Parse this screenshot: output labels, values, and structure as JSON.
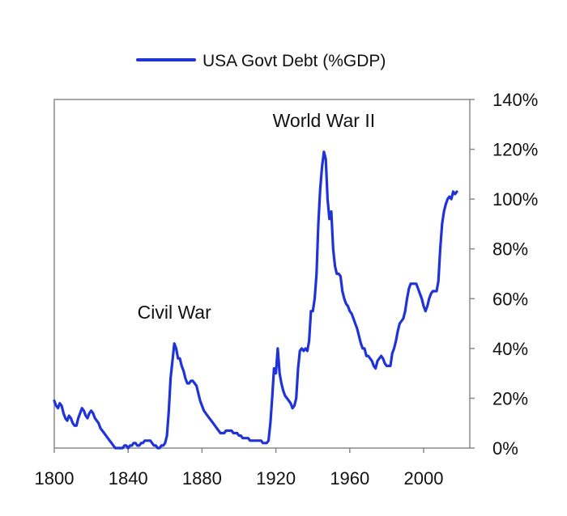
{
  "chart_data": {
    "type": "line",
    "title": "",
    "xlabel": "",
    "ylabel": "",
    "xlim": [
      1800,
      2025
    ],
    "ylim": [
      0,
      140
    ],
    "x_ticks": [
      1800,
      1840,
      1880,
      1920,
      1960,
      2000
    ],
    "y_ticks": [
      0,
      20,
      40,
      60,
      80,
      100,
      120,
      140
    ],
    "y_tick_format": "%",
    "y_axis_side": "right",
    "grid": false,
    "legend_position": "top-center",
    "series": [
      {
        "name": "USA Govt Debt (%GDP)",
        "color": "#1f33d6",
        "points": [
          [
            1800,
            19
          ],
          [
            1801,
            17
          ],
          [
            1802,
            16
          ],
          [
            1803,
            18
          ],
          [
            1804,
            17
          ],
          [
            1805,
            14
          ],
          [
            1806,
            12
          ],
          [
            1807,
            11
          ],
          [
            1808,
            13
          ],
          [
            1809,
            12
          ],
          [
            1810,
            10
          ],
          [
            1811,
            9
          ],
          [
            1812,
            9
          ],
          [
            1813,
            12
          ],
          [
            1814,
            14
          ],
          [
            1815,
            16
          ],
          [
            1816,
            15
          ],
          [
            1817,
            13
          ],
          [
            1818,
            12
          ],
          [
            1819,
            14
          ],
          [
            1820,
            15
          ],
          [
            1821,
            14
          ],
          [
            1822,
            12
          ],
          [
            1823,
            11
          ],
          [
            1824,
            10
          ],
          [
            1825,
            8
          ],
          [
            1826,
            7
          ],
          [
            1827,
            6
          ],
          [
            1828,
            5
          ],
          [
            1829,
            4
          ],
          [
            1830,
            3
          ],
          [
            1831,
            2
          ],
          [
            1832,
            1
          ],
          [
            1833,
            0
          ],
          [
            1834,
            0
          ],
          [
            1835,
            0
          ],
          [
            1836,
            0
          ],
          [
            1837,
            0
          ],
          [
            1838,
            1
          ],
          [
            1839,
            1
          ],
          [
            1840,
            0
          ],
          [
            1841,
            1
          ],
          [
            1842,
            1
          ],
          [
            1843,
            2
          ],
          [
            1844,
            2
          ],
          [
            1845,
            1
          ],
          [
            1846,
            1
          ],
          [
            1847,
            2
          ],
          [
            1848,
            2
          ],
          [
            1849,
            3
          ],
          [
            1850,
            3
          ],
          [
            1851,
            3
          ],
          [
            1852,
            3
          ],
          [
            1853,
            2
          ],
          [
            1854,
            1
          ],
          [
            1855,
            1
          ],
          [
            1856,
            0
          ],
          [
            1857,
            0
          ],
          [
            1858,
            1
          ],
          [
            1859,
            1
          ],
          [
            1860,
            2
          ],
          [
            1861,
            5
          ],
          [
            1862,
            15
          ],
          [
            1863,
            28
          ],
          [
            1864,
            35
          ],
          [
            1865,
            42
          ],
          [
            1866,
            40
          ],
          [
            1867,
            36
          ],
          [
            1868,
            36
          ],
          [
            1869,
            33
          ],
          [
            1870,
            31
          ],
          [
            1871,
            28
          ],
          [
            1872,
            26
          ],
          [
            1873,
            26
          ],
          [
            1874,
            27
          ],
          [
            1875,
            27
          ],
          [
            1876,
            26
          ],
          [
            1877,
            25
          ],
          [
            1878,
            22
          ],
          [
            1879,
            19
          ],
          [
            1880,
            17
          ],
          [
            1881,
            15
          ],
          [
            1882,
            14
          ],
          [
            1883,
            13
          ],
          [
            1884,
            12
          ],
          [
            1885,
            11
          ],
          [
            1886,
            10
          ],
          [
            1887,
            9
          ],
          [
            1888,
            8
          ],
          [
            1889,
            7
          ],
          [
            1890,
            6
          ],
          [
            1891,
            6
          ],
          [
            1892,
            6
          ],
          [
            1893,
            7
          ],
          [
            1894,
            7
          ],
          [
            1895,
            7
          ],
          [
            1896,
            7
          ],
          [
            1897,
            6
          ],
          [
            1898,
            6
          ],
          [
            1899,
            6
          ],
          [
            1900,
            5
          ],
          [
            1901,
            5
          ],
          [
            1902,
            4
          ],
          [
            1903,
            4
          ],
          [
            1904,
            4
          ],
          [
            1905,
            4
          ],
          [
            1906,
            3
          ],
          [
            1907,
            3
          ],
          [
            1908,
            3
          ],
          [
            1909,
            3
          ],
          [
            1910,
            3
          ],
          [
            1911,
            3
          ],
          [
            1912,
            3
          ],
          [
            1913,
            2
          ],
          [
            1914,
            2
          ],
          [
            1915,
            2
          ],
          [
            1916,
            3
          ],
          [
            1917,
            10
          ],
          [
            1918,
            20
          ],
          [
            1919,
            32
          ],
          [
            1920,
            30
          ],
          [
            1921,
            40
          ],
          [
            1922,
            30
          ],
          [
            1923,
            26
          ],
          [
            1924,
            23
          ],
          [
            1925,
            21
          ],
          [
            1926,
            20
          ],
          [
            1927,
            19
          ],
          [
            1928,
            18
          ],
          [
            1929,
            16
          ],
          [
            1930,
            17
          ],
          [
            1931,
            20
          ],
          [
            1932,
            32
          ],
          [
            1933,
            39
          ],
          [
            1934,
            40
          ],
          [
            1935,
            39
          ],
          [
            1936,
            40
          ],
          [
            1937,
            39
          ],
          [
            1938,
            43
          ],
          [
            1939,
            55
          ],
          [
            1940,
            55
          ],
          [
            1941,
            60
          ],
          [
            1942,
            70
          ],
          [
            1943,
            90
          ],
          [
            1944,
            104
          ],
          [
            1945,
            113
          ],
          [
            1946,
            119
          ],
          [
            1947,
            116
          ],
          [
            1948,
            100
          ],
          [
            1949,
            92
          ],
          [
            1950,
            95
          ],
          [
            1951,
            80
          ],
          [
            1952,
            73
          ],
          [
            1953,
            70
          ],
          [
            1954,
            70
          ],
          [
            1955,
            69
          ],
          [
            1956,
            63
          ],
          [
            1957,
            60
          ],
          [
            1958,
            58
          ],
          [
            1959,
            57
          ],
          [
            1960,
            55
          ],
          [
            1961,
            54
          ],
          [
            1962,
            52
          ],
          [
            1963,
            50
          ],
          [
            1964,
            48
          ],
          [
            1965,
            45
          ],
          [
            1966,
            42
          ],
          [
            1967,
            40
          ],
          [
            1968,
            40
          ],
          [
            1969,
            37
          ],
          [
            1970,
            37
          ],
          [
            1971,
            36
          ],
          [
            1972,
            35
          ],
          [
            1973,
            33
          ],
          [
            1974,
            32
          ],
          [
            1975,
            35
          ],
          [
            1976,
            36
          ],
          [
            1977,
            37
          ],
          [
            1978,
            36
          ],
          [
            1979,
            34
          ],
          [
            1980,
            33
          ],
          [
            1981,
            33
          ],
          [
            1982,
            33
          ],
          [
            1983,
            38
          ],
          [
            1984,
            40
          ],
          [
            1985,
            43
          ],
          [
            1986,
            47
          ],
          [
            1987,
            50
          ],
          [
            1988,
            51
          ],
          [
            1989,
            52
          ],
          [
            1990,
            55
          ],
          [
            1991,
            60
          ],
          [
            1992,
            64
          ],
          [
            1993,
            66
          ],
          [
            1994,
            66
          ],
          [
            1995,
            66
          ],
          [
            1996,
            66
          ],
          [
            1997,
            64
          ],
          [
            1998,
            62
          ],
          [
            1999,
            60
          ],
          [
            2000,
            57
          ],
          [
            2001,
            55
          ],
          [
            2002,
            57
          ],
          [
            2003,
            60
          ],
          [
            2004,
            62
          ],
          [
            2005,
            63
          ],
          [
            2006,
            63
          ],
          [
            2007,
            63
          ],
          [
            2008,
            67
          ],
          [
            2009,
            80
          ],
          [
            2010,
            90
          ],
          [
            2011,
            95
          ],
          [
            2012,
            98
          ],
          [
            2013,
            100
          ],
          [
            2014,
            101
          ],
          [
            2015,
            100
          ],
          [
            2016,
            103
          ],
          [
            2017,
            102
          ],
          [
            2018,
            103
          ]
        ]
      }
    ],
    "annotations": [
      {
        "text": "Civil War",
        "x": 1865,
        "y": 52
      },
      {
        "text": "World War II",
        "x": 1946,
        "y": 129
      }
    ]
  }
}
